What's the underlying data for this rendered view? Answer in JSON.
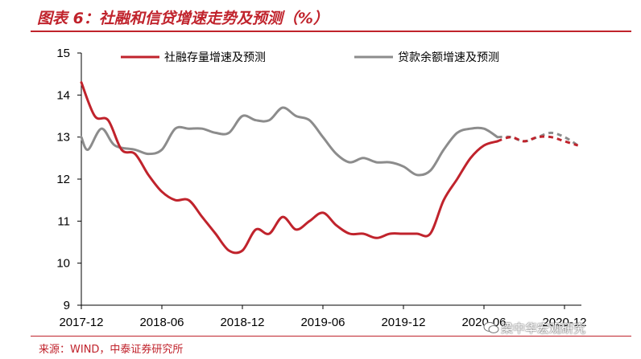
{
  "title": "图表 6：社融和信贷增速走势及预测（%）",
  "source": "来源：WIND，中泰证券研究所",
  "watermark": "梁中华宏观研究",
  "colors": {
    "accent": "#c0232c",
    "series1": "#c0232c",
    "series2": "#8c8c8c"
  },
  "chart_data": {
    "type": "line",
    "title": "社融和信贷增速走势及预测（%）",
    "xlabel": "",
    "ylabel": "",
    "ylim": [
      9,
      15
    ],
    "yticks": [
      "9",
      "10",
      "11",
      "12",
      "13",
      "14",
      "15"
    ],
    "xticks": [
      {
        "label": "2017-12",
        "t": 0
      },
      {
        "label": "2018-06",
        "t": 6
      },
      {
        "label": "2018-12",
        "t": 12
      },
      {
        "label": "2019-06",
        "t": 18
      },
      {
        "label": "2019-12",
        "t": 24
      },
      {
        "label": "2020-06",
        "t": 30
      },
      {
        "label": "2020-12",
        "t": 36
      }
    ],
    "legend_position": "top",
    "series": [
      {
        "name": "社融存量增速及预测",
        "color": "#c0232c",
        "actual": [
          [
            0,
            14.3
          ],
          [
            1,
            13.5
          ],
          [
            2,
            13.4
          ],
          [
            3,
            12.7
          ],
          [
            4,
            12.6
          ],
          [
            5,
            12.1
          ],
          [
            6,
            11.7
          ],
          [
            7,
            11.5
          ],
          [
            8,
            11.5
          ],
          [
            9,
            11.1
          ],
          [
            10,
            10.7
          ],
          [
            11,
            10.3
          ],
          [
            12,
            10.3
          ],
          [
            13,
            10.8
          ],
          [
            14,
            10.7
          ],
          [
            15,
            11.1
          ],
          [
            16,
            10.8
          ],
          [
            17,
            11.0
          ],
          [
            18,
            11.2
          ],
          [
            19,
            10.9
          ],
          [
            20,
            10.7
          ],
          [
            21,
            10.7
          ],
          [
            22,
            10.6
          ],
          [
            23,
            10.7
          ],
          [
            24,
            10.7
          ],
          [
            25,
            10.7
          ],
          [
            26,
            10.7
          ],
          [
            27,
            11.5
          ],
          [
            28,
            12.0
          ],
          [
            29,
            12.5
          ],
          [
            30,
            12.8
          ],
          [
            31,
            12.9
          ]
        ],
        "forecast": [
          [
            31,
            12.9
          ],
          [
            32,
            13.0
          ],
          [
            33,
            12.9
          ],
          [
            34,
            13.0
          ],
          [
            35,
            13.0
          ],
          [
            36,
            12.9
          ],
          [
            37,
            12.8
          ]
        ]
      },
      {
        "name": "贷款余额增速及预测",
        "color": "#8c8c8c",
        "actual": [
          [
            0,
            13.0
          ],
          [
            0.5,
            12.7
          ],
          [
            1.5,
            13.2
          ],
          [
            2.5,
            12.8
          ],
          [
            4,
            12.7
          ],
          [
            5,
            12.6
          ],
          [
            6,
            12.7
          ],
          [
            7,
            13.2
          ],
          [
            8,
            13.2
          ],
          [
            9,
            13.2
          ],
          [
            10,
            13.1
          ],
          [
            11,
            13.1
          ],
          [
            12,
            13.5
          ],
          [
            13,
            13.4
          ],
          [
            14,
            13.4
          ],
          [
            15,
            13.7
          ],
          [
            16,
            13.5
          ],
          [
            17,
            13.4
          ],
          [
            18,
            13.0
          ],
          [
            19,
            12.6
          ],
          [
            20,
            12.4
          ],
          [
            21,
            12.5
          ],
          [
            22,
            12.4
          ],
          [
            23,
            12.4
          ],
          [
            24,
            12.3
          ],
          [
            25,
            12.1
          ],
          [
            26,
            12.2
          ],
          [
            27,
            12.7
          ],
          [
            28,
            13.1
          ],
          [
            29,
            13.2
          ],
          [
            30,
            13.2
          ],
          [
            31,
            13.0
          ]
        ],
        "forecast": [
          [
            31,
            13.0
          ],
          [
            32,
            13.0
          ],
          [
            33,
            12.9
          ],
          [
            34,
            13.0
          ],
          [
            35,
            13.1
          ],
          [
            36,
            13.0
          ],
          [
            37,
            12.8
          ]
        ]
      }
    ]
  }
}
